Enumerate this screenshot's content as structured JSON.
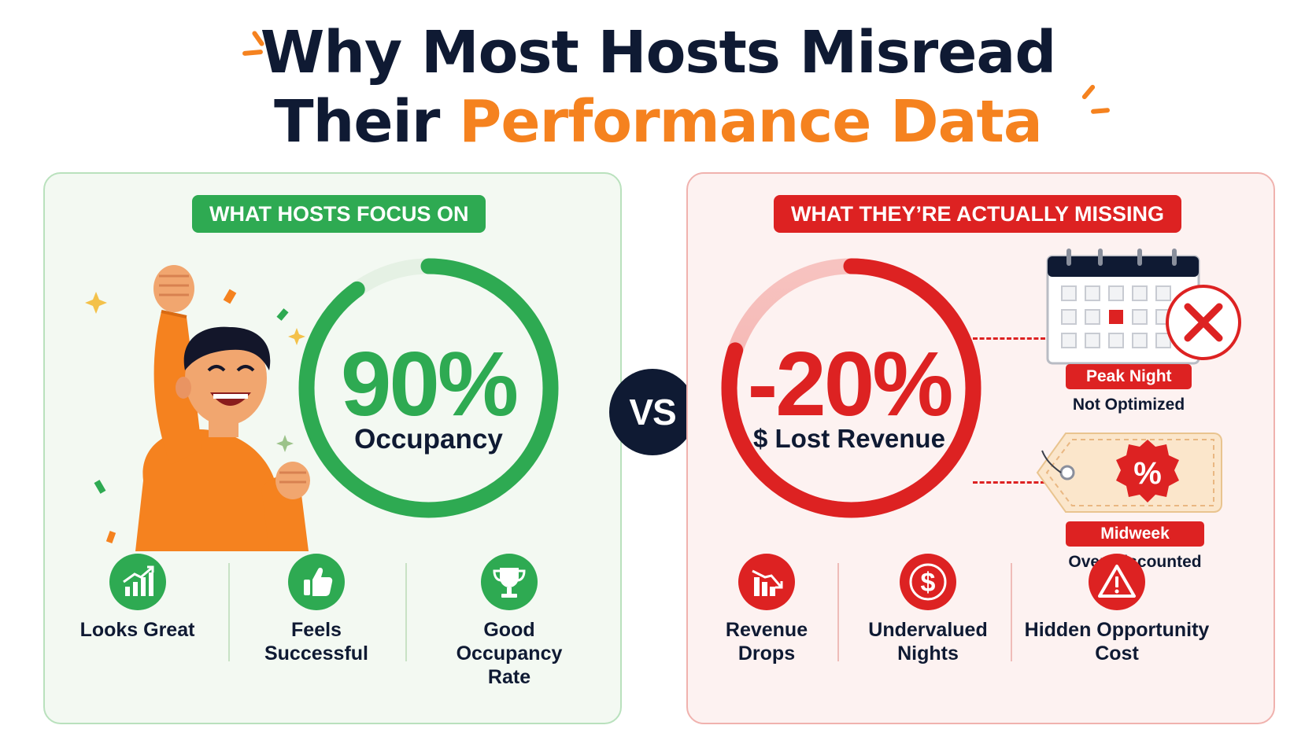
{
  "header": {
    "line1": "Why Most Hosts Misread",
    "line2_dark": "Their ",
    "line2_accent": "Performance Data"
  },
  "left_panel": {
    "pill": "WHAT HOSTS FOCUS ON",
    "metric_value": "90%",
    "metric_label": "Occupancy",
    "metric_progress_fraction": 0.9,
    "features": [
      {
        "label": "Looks Great",
        "icon": "growth-chart-icon"
      },
      {
        "label": "Feels Successful",
        "icon": "thumbs-up-icon"
      },
      {
        "label": "Good Occupancy Rate",
        "icon": "trophy-icon"
      }
    ]
  },
  "vs": "VS",
  "right_panel": {
    "pill": "WHAT THEY’RE ACTUALLY MISSING",
    "metric_value": "-20%",
    "metric_label": "$ Lost Revenue",
    "metric_progress_fraction": 0.8,
    "callouts": [
      {
        "tag": "Peak Night",
        "sub": "Not Optimized",
        "icon": "calendar-x-icon"
      },
      {
        "tag": "Midweek",
        "sub": "Over-Discounted",
        "icon": "discount-tag-icon"
      }
    ],
    "features": [
      {
        "label": "Revenue Drops",
        "icon": "declining-chart-icon"
      },
      {
        "label": "Undervalued Nights",
        "icon": "dollar-icon"
      },
      {
        "label": "Hidden Opportunity Cost",
        "icon": "warning-icon"
      }
    ]
  },
  "colors": {
    "navy": "#0f1a33",
    "orange": "#f5821f",
    "green": "#2eaa52",
    "red": "#dd2222"
  }
}
